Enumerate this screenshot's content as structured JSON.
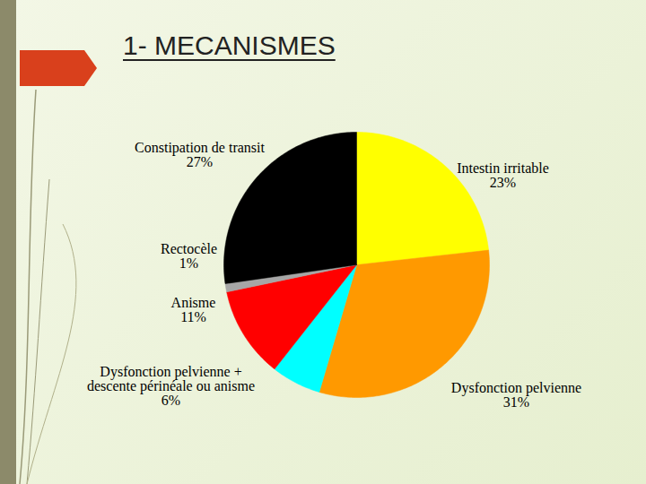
{
  "chart_data": {
    "type": "pie",
    "title": "1- MECANISMES",
    "categories": [
      "Intestin irritable",
      "Dysfonction pelvienne",
      "Dysfonction pelvienne + descente périnéale ou anisme",
      "Anisme",
      "Rectocèle",
      "Constipation de transit"
    ],
    "values": [
      23,
      31,
      6,
      11,
      1,
      27
    ],
    "value_labels": [
      "23%",
      "31%",
      "6%",
      "11%",
      "1%",
      "27%"
    ],
    "colors": [
      "#ffff00",
      "#ff9900",
      "#00ffff",
      "#ff0000",
      "#a6a6a6",
      "#000000"
    ],
    "data_labels": true
  }
}
